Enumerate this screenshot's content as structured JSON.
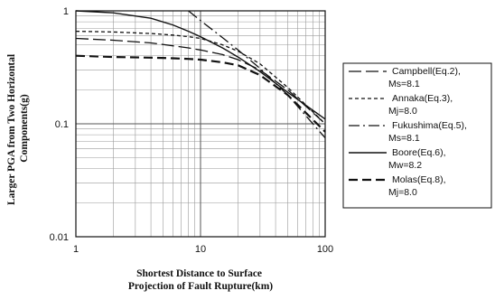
{
  "chart_data": {
    "type": "line",
    "title": "",
    "xlabel_lines": [
      "Shortest Distance to Surface",
      "Projection of Fault Rupture(km)"
    ],
    "ylabel_lines": [
      "Larger PGA from Two Horizontal",
      "Components(g)"
    ],
    "x_scale": "log",
    "y_scale": "log",
    "xlim": [
      1,
      100
    ],
    "ylim": [
      0.01,
      1
    ],
    "x_ticks": [
      {
        "value": 1,
        "label": "1"
      },
      {
        "value": 10,
        "label": "10"
      },
      {
        "value": 100,
        "label": "100"
      }
    ],
    "y_ticks": [
      {
        "value": 1,
        "label": "1"
      },
      {
        "value": 0.1,
        "label": "0.1"
      },
      {
        "value": 0.01,
        "label": "0.01"
      }
    ],
    "grid": true,
    "legend_position": "right",
    "series": [
      {
        "name_lines": [
          "Campbell(Eq.2),",
          "Ms=8.1"
        ],
        "dash": "long-dash",
        "x": [
          1,
          2,
          4,
          6,
          8,
          10,
          15,
          20,
          30,
          50,
          100
        ],
        "y": [
          0.57,
          0.55,
          0.52,
          0.49,
          0.47,
          0.45,
          0.41,
          0.37,
          0.3,
          0.2,
          0.1
        ]
      },
      {
        "name_lines": [
          "Annaka(Eq.3),",
          "Mj=8.0"
        ],
        "dash": "short-dash",
        "x": [
          1,
          2,
          4,
          6,
          8,
          10,
          15,
          20,
          30,
          50,
          100
        ],
        "y": [
          0.66,
          0.65,
          0.63,
          0.61,
          0.59,
          0.57,
          0.5,
          0.44,
          0.34,
          0.21,
          0.1
        ]
      },
      {
        "name_lines": [
          "Fukushima(Eq.5),",
          "Ms=8.1"
        ],
        "dash": "dash-dot",
        "x": [
          8,
          10,
          15,
          20,
          30,
          50,
          100
        ],
        "y": [
          1.0,
          0.82,
          0.58,
          0.45,
          0.31,
          0.18,
          0.075
        ]
      },
      {
        "name_lines": [
          "Boore(Eq.6),",
          "Mw=8.2"
        ],
        "dash": "solid",
        "x": [
          1,
          2,
          4,
          6,
          8,
          10,
          15,
          20,
          30,
          50,
          100
        ],
        "y": [
          1.0,
          0.96,
          0.86,
          0.75,
          0.66,
          0.59,
          0.47,
          0.39,
          0.29,
          0.19,
          0.11
        ]
      },
      {
        "name_lines": [
          "Molas(Eq.8),",
          "Mj=8.0"
        ],
        "dash": "heavy-dash",
        "x": [
          1,
          2,
          4,
          6,
          8,
          10,
          15,
          20,
          30,
          50,
          100
        ],
        "y": [
          0.4,
          0.39,
          0.385,
          0.38,
          0.375,
          0.37,
          0.35,
          0.33,
          0.27,
          0.18,
          0.085
        ]
      }
    ]
  }
}
